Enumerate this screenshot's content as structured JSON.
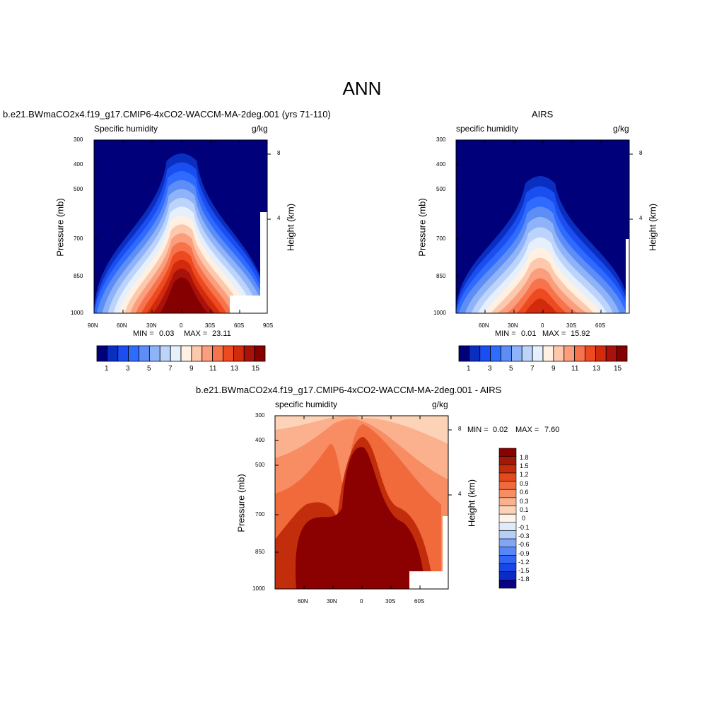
{
  "title": "ANN",
  "colors": {
    "colorbar": [
      "#00007a",
      "#0a2fc0",
      "#1b4ef0",
      "#2f6bff",
      "#5d8ef6",
      "#8fb3f8",
      "#bcd3fb",
      "#e6f0fc",
      "#fff0e2",
      "#fdc9ad",
      "#fb9e7e",
      "#f7734c",
      "#ee4a22",
      "#d22a0c",
      "#a9120a",
      "#850000"
    ],
    "diff": [
      "#0a0085",
      "#0a2cc4",
      "#1747e8",
      "#2f66f7",
      "#5686f7",
      "#82a6f7",
      "#b5cff8",
      "#dfeafc",
      "#fff2e6",
      "#fdd3b7",
      "#fbb18e",
      "#f88c63",
      "#f06a3c",
      "#e24a1c",
      "#c22d0c",
      "#a31707",
      "#8b0000"
    ]
  },
  "panels": {
    "model": {
      "title": "b.e21.BWmaCO2x4.f19_g17.CMIP6-4xCO2-WACCM-MA-2deg.001 (yrs 71-110)",
      "left_label": "Specific humidity",
      "right_label": "g/kg",
      "ylabel": "Pressure (mb)",
      "ylabel_right": "Height (km)",
      "x_ticks": [
        "90N",
        "60N",
        "30N",
        "0",
        "30S",
        "60S",
        "90S"
      ],
      "y_ticks": [
        "300",
        "400",
        "500",
        "700",
        "850",
        "1000"
      ],
      "right_ticks": [
        "8",
        "4"
      ],
      "min_label": "MIN =",
      "min_value": "0.03",
      "max_label": "MAX =",
      "max_value": "23.11",
      "colorbar_labels": [
        "1",
        "3",
        "5",
        "7",
        "9",
        "11",
        "13",
        "15"
      ]
    },
    "obs": {
      "title": "AIRS",
      "left_label": "specific humidity",
      "right_label": "g/kg",
      "ylabel": "Pressure (mb)",
      "ylabel_right": "Height (km)",
      "x_ticks": [
        "60N",
        "30N",
        "0",
        "30S",
        "60S"
      ],
      "y_ticks": [
        "300",
        "400",
        "500",
        "700",
        "850",
        "1000"
      ],
      "right_ticks": [
        "8",
        "4"
      ],
      "min_label": "MIN =",
      "min_value": "0.01",
      "max_label": "MAX =",
      "max_value": "15.92",
      "colorbar_labels": [
        "1",
        "3",
        "5",
        "7",
        "9",
        "11",
        "13",
        "15"
      ]
    },
    "diff": {
      "title": "b.e21.BWmaCO2x4.f19_g17.CMIP6-4xCO2-WACCM-MA-2deg.001 - AIRS",
      "left_label": "specific humidity",
      "right_label": "g/kg",
      "ylabel": "Pressure (mb)",
      "ylabel_right": "Height (km)",
      "x_ticks": [
        "60N",
        "30N",
        "0",
        "30S",
        "60S"
      ],
      "y_ticks": [
        "300",
        "400",
        "500",
        "700",
        "850",
        "1000"
      ],
      "right_ticks": [
        "8",
        "4"
      ],
      "min_label": "MIN =",
      "min_value": "0.02",
      "max_label": "MAX =",
      "max_value": "7.60",
      "colorbar_labels": [
        "1.8",
        "1.5",
        "1.2",
        "0.9",
        "0.6",
        "0.3",
        "0.1",
        "0",
        "-0.1",
        "-0.3",
        "-0.6",
        "-0.9",
        "-1.2",
        "-1.5",
        "-1.8"
      ]
    }
  },
  "chart_data": [
    {
      "type": "heatmap",
      "title": "b.e21.BWmaCO2x4.f19_g17.CMIP6-4xCO2-WACCM-MA-2deg.001 (yrs 71-110)",
      "variable": "Specific humidity",
      "units": "g/kg",
      "xlabel": "",
      "ylabel": "Pressure (mb)",
      "xlim": [
        90,
        -90
      ],
      "ylim": [
        1000,
        300
      ],
      "min": 0.03,
      "max": 23.11,
      "levels": [
        1,
        2,
        3,
        4,
        5,
        6,
        7,
        8,
        9,
        10,
        11,
        12,
        13,
        14,
        15
      ],
      "y_right_label": "Height (km)",
      "y_right_ticks": [
        8,
        4
      ]
    },
    {
      "type": "heatmap",
      "title": "AIRS",
      "variable": "specific humidity",
      "units": "g/kg",
      "ylabel": "Pressure (mb)",
      "xlim": [
        90,
        -90
      ],
      "ylim": [
        1000,
        300
      ],
      "min": 0.01,
      "max": 15.92,
      "levels": [
        1,
        2,
        3,
        4,
        5,
        6,
        7,
        8,
        9,
        10,
        11,
        12,
        13,
        14,
        15
      ]
    },
    {
      "type": "heatmap",
      "title": "b.e21.BWmaCO2x4.f19_g17.CMIP6-4xCO2-WACCM-MA-2deg.001 - AIRS",
      "variable": "specific humidity",
      "units": "g/kg",
      "ylabel": "Pressure (mb)",
      "xlim": [
        90,
        -90
      ],
      "ylim": [
        1000,
        300
      ],
      "min": 0.02,
      "max": 7.6,
      "levels": [
        -1.8,
        -1.5,
        -1.2,
        -0.9,
        -0.6,
        -0.3,
        -0.1,
        0,
        0.1,
        0.3,
        0.6,
        0.9,
        1.2,
        1.5,
        1.8
      ]
    }
  ]
}
